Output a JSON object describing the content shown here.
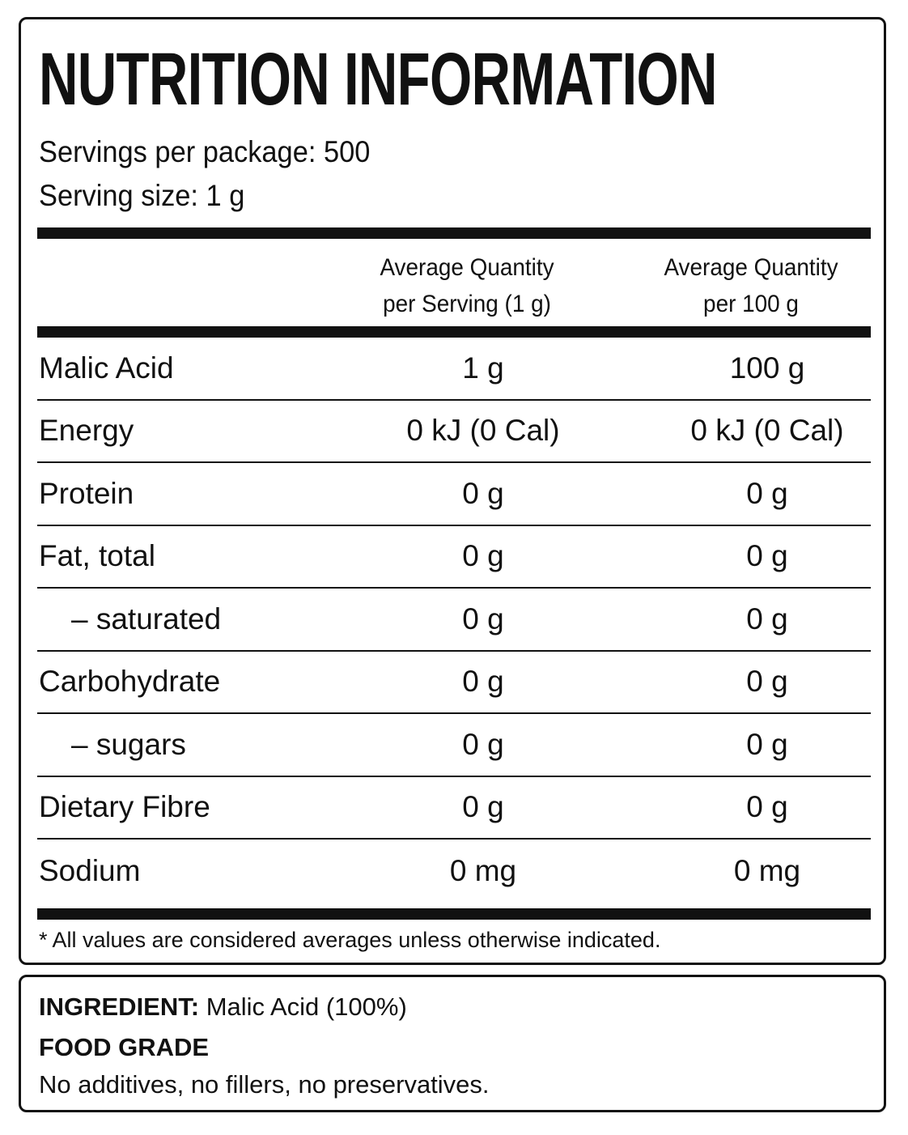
{
  "label": {
    "title": "NUTRITION INFORMATION",
    "servings_per_package": "Servings per package: 500",
    "serving_size": "Serving size: 1 g",
    "columns": {
      "per_serving_line1": "Average Quantity",
      "per_serving_line2": "per Serving (1 g)",
      "per_100g_line1": "Average Quantity",
      "per_100g_line2": "per 100 g"
    },
    "rows": [
      {
        "name": "Malic Acid",
        "per_serving": "1 g",
        "per_100g": "100 g"
      },
      {
        "name": "Energy",
        "per_serving": "0 kJ (0 Cal)",
        "per_100g": "0 kJ (0 Cal)"
      },
      {
        "name": "Protein",
        "per_serving": "0 g",
        "per_100g": "0 g"
      },
      {
        "name": "Fat, total",
        "per_serving": "0 g",
        "per_100g": "0 g"
      },
      {
        "name": "– saturated",
        "per_serving": "0 g",
        "per_100g": "0 g"
      },
      {
        "name": "Carbohydrate",
        "per_serving": "0 g",
        "per_100g": "0 g"
      },
      {
        "name": "– sugars",
        "per_serving": "0 g",
        "per_100g": "0 g"
      },
      {
        "name": "Dietary Fibre",
        "per_serving": "0 g",
        "per_100g": "0 g"
      },
      {
        "name": "Sodium",
        "per_serving": "0 mg",
        "per_100g": "0 mg"
      }
    ],
    "footnote": "* All values are considered averages unless otherwise indicated."
  },
  "ingredients": {
    "heading": "INGREDIENT:",
    "text": "Malic Acid (100%)",
    "grade": "FOOD GRADE",
    "note": "No additives, no fillers, no preservatives."
  }
}
